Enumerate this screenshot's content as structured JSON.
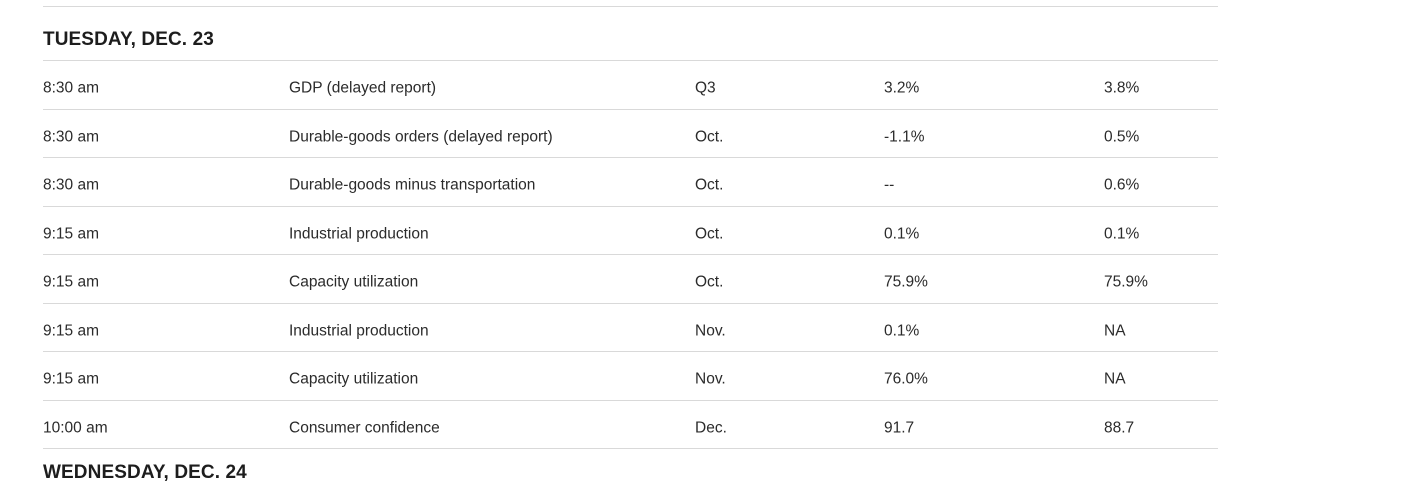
{
  "calendar": {
    "colors": {
      "background": "#ffffff",
      "row_text": "#2b2b2b",
      "header_text": "#1d1d1d",
      "divider": "#d9d9d9"
    },
    "sections": [
      {
        "day_label": "TUESDAY, DEC. 23",
        "rows": [
          {
            "time": "8:30 am",
            "report": "GDP (delayed report)",
            "period": "Q3",
            "actual": "3.2%",
            "forecast": "3.8%"
          },
          {
            "time": "8:30 am",
            "report": "Durable-goods orders (delayed report)",
            "period": "Oct.",
            "actual": "-1.1%",
            "forecast": "0.5%"
          },
          {
            "time": "8:30 am",
            "report": "Durable-goods minus transportation",
            "period": "Oct.",
            "actual": "--",
            "forecast": "0.6%"
          },
          {
            "time": "9:15 am",
            "report": "Industrial production",
            "period": "Oct.",
            "actual": "0.1%",
            "forecast": "0.1%"
          },
          {
            "time": "9:15 am",
            "report": "Capacity utilization",
            "period": "Oct.",
            "actual": "75.9%",
            "forecast": "75.9%"
          },
          {
            "time": "9:15 am",
            "report": "Industrial production",
            "period": "Nov.",
            "actual": "0.1%",
            "forecast": "NA"
          },
          {
            "time": "9:15 am",
            "report": "Capacity utilization",
            "period": "Nov.",
            "actual": "76.0%",
            "forecast": "NA"
          },
          {
            "time": "10:00 am",
            "report": "Consumer confidence",
            "period": "Dec.",
            "actual": "91.7",
            "forecast": "88.7"
          }
        ]
      },
      {
        "day_label": "WEDNESDAY, DEC. 24",
        "rows": []
      }
    ]
  }
}
